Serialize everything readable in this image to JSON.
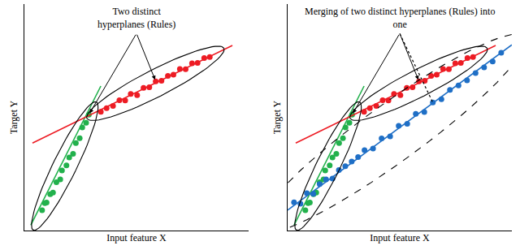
{
  "chart_data": [
    {
      "type": "scatter",
      "xlabel": "Input feature X",
      "ylabel": "Target Y",
      "tick_labels": false,
      "grid": false,
      "xlim": [
        0,
        105
      ],
      "ylim": [
        0,
        100
      ],
      "annotations": [
        {
          "text": "Two distinct\nhyperplanes (Rules)"
        }
      ],
      "series": [
        {
          "type": "scatter",
          "color": "#22b14c",
          "marker": "circle",
          "x": [
            8.3,
            9.6,
            10.4,
            12.1,
            13.4,
            15.0,
            16.8,
            17.6,
            19.7,
            21.0,
            22.8,
            24.1,
            25.9,
            27.1,
            28.9,
            30.2
          ],
          "values": [
            9.0,
            12.1,
            12.4,
            16.0,
            16.8,
            21.3,
            22.6,
            26.5,
            28.8,
            32.3,
            33.9,
            38.6,
            40.8,
            45.5,
            47.6,
            51.2
          ]
        },
        {
          "type": "scatter",
          "color": "#ed1c24",
          "marker": "circle",
          "x": [
            35.8,
            38.5,
            41.5,
            44.5,
            47.2,
            49.8,
            52.8,
            55.8,
            58.5,
            61.5,
            64.2,
            67.2,
            69.8,
            72.8,
            75.5,
            78.5,
            81.1,
            84.2,
            86.8
          ],
          "values": [
            52.4,
            54.0,
            55.0,
            57.5,
            57.4,
            60.3,
            59.8,
            63.0,
            63.3,
            65.9,
            66.1,
            68.3,
            68.8,
            71.3,
            71.2,
            73.8,
            74.0,
            76.2,
            76.6
          ]
        },
        {
          "type": "line",
          "color": "#22b14c",
          "line_style": "solid",
          "x": [
            3.0,
            35.8
          ],
          "values": [
            2.4,
            63.8
          ]
        },
        {
          "type": "line",
          "color": "#ed1c24",
          "line_style": "solid",
          "x": [
            3.8,
            97.4
          ],
          "values": [
            38.6,
            81.7
          ]
        }
      ]
    },
    {
      "type": "scatter",
      "xlabel": "Input feature X",
      "ylabel": "Target Y",
      "tick_labels": false,
      "grid": false,
      "xlim": [
        0,
        105
      ],
      "ylim": [
        0,
        100
      ],
      "annotations": [
        {
          "text": "Merging of two distinct hyperplanes (Rules) into\none"
        }
      ],
      "series": [
        {
          "type": "scatter",
          "color": "#22b14c",
          "marker": "circle",
          "x": [
            8.3,
            9.6,
            10.4,
            12.1,
            13.4,
            15.0,
            16.8,
            17.6,
            19.7,
            21.0,
            22.8,
            24.1,
            25.9,
            27.1,
            28.9,
            30.2
          ],
          "values": [
            9.0,
            12.1,
            12.4,
            16.0,
            16.8,
            21.3,
            22.6,
            26.5,
            28.8,
            32.3,
            33.9,
            38.6,
            40.8,
            45.5,
            47.6,
            51.2
          ]
        },
        {
          "type": "scatter",
          "color": "#ed1c24",
          "marker": "circle",
          "x": [
            35.8,
            38.5,
            41.5,
            44.5,
            47.2,
            49.8,
            52.8,
            55.8,
            58.5,
            61.5,
            64.2,
            67.2,
            69.8,
            72.8,
            75.5,
            78.5,
            81.1,
            84.2,
            86.8
          ],
          "values": [
            52.4,
            54.0,
            55.0,
            57.5,
            57.4,
            60.3,
            59.8,
            63.0,
            63.3,
            65.9,
            66.1,
            68.3,
            68.8,
            71.3,
            71.2,
            73.8,
            74.0,
            76.2,
            76.6
          ]
        },
        {
          "type": "scatter",
          "color": "#1f6fc6",
          "marker": "circle",
          "x": [
            3,
            6,
            9,
            12,
            15,
            18,
            21,
            24,
            27,
            30,
            33,
            36,
            40,
            44,
            48,
            52,
            56,
            60,
            64,
            68,
            72,
            76,
            80,
            84,
            88,
            92,
            96,
            100
          ],
          "values": [
            12.5,
            11.8,
            16.5,
            16.2,
            20.5,
            22.6,
            22.9,
            26.7,
            28.4,
            30.5,
            32.4,
            35.5,
            36.2,
            40.7,
            41.6,
            46.2,
            47.1,
            51.5,
            52.3,
            56.5,
            58.0,
            62.1,
            64.1,
            66.3,
            69.5,
            72.0,
            74.6,
            78.5
          ]
        },
        {
          "type": "line",
          "color": "#22b14c",
          "line_style": "solid",
          "x": [
            3.0,
            35.8
          ],
          "values": [
            2.4,
            63.8
          ]
        },
        {
          "type": "line",
          "color": "#ed1c24",
          "line_style": "solid",
          "x": [
            3.8,
            97.4
          ],
          "values": [
            38.6,
            81.7
          ]
        },
        {
          "type": "line",
          "color": "#1f6fc6",
          "line_style": "solid",
          "x": [
            0,
            105
          ],
          "values": [
            9,
            82
          ]
        }
      ]
    }
  ]
}
